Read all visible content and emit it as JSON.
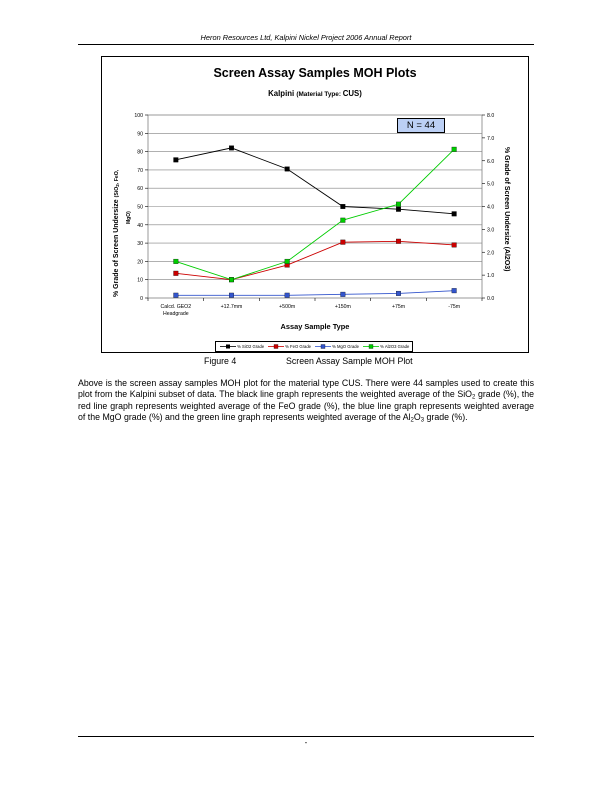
{
  "header": {
    "text": "Heron Resources Ltd, Kalpini Nickel Project 2006 Annual Report"
  },
  "chart": {
    "title": "Screen Assay Samples MOH Plots",
    "subtitle_main": "Kalpini ",
    "subtitle_small": "(Material Type: ",
    "subtitle_end": "CUS)",
    "n_label": "N = 44",
    "ylabel_left_a": "% Grade of Screen Undersize ",
    "ylabel_left_b": "(SiO",
    "ylabel_left_sub": "2",
    "ylabel_left_c": ", FeO,",
    "ylabel_left2_a": "Mg",
    "ylabel_left2_b": "O)",
    "ylabel_right": "% Grade of Screen Undersize (Al2O3)",
    "xlabel": "Assay Sample Type",
    "legend": [
      "% SiO2 Grade",
      "% FeO Grade",
      "% MgO Grade",
      "% Al2O3 Grade"
    ]
  },
  "chart_data": {
    "type": "line",
    "categories": [
      [
        "Calcd. GEO2",
        "Headgrade"
      ],
      [
        "+12.7mm"
      ],
      [
        "+500m"
      ],
      [
        "+150m"
      ],
      [
        "+75m"
      ],
      [
        "-75m"
      ]
    ],
    "y_left": {
      "ylim": [
        0,
        100
      ],
      "ticks": [
        "0",
        "10",
        "20",
        "30",
        "40",
        "50",
        "60",
        "70",
        "80",
        "90",
        "100"
      ]
    },
    "y_right": {
      "ylim": [
        0,
        8
      ],
      "ticks": [
        "0.0",
        "1.0",
        "2.0",
        "3.0",
        "4.0",
        "5.0",
        "6.0",
        "7.0",
        "8.0"
      ]
    },
    "grid": true,
    "legend_position": "bottom",
    "series": [
      {
        "name": "% SiO2 Grade",
        "axis": "left",
        "color": "#000000",
        "values": [
          75.5,
          82,
          70.5,
          50,
          48.5,
          46
        ]
      },
      {
        "name": "% FeO Grade",
        "axis": "left",
        "color": "#cc0000",
        "values": [
          13.5,
          10,
          18,
          30.5,
          31,
          29
        ]
      },
      {
        "name": "% MgO Grade",
        "axis": "left",
        "color": "#3355cc",
        "values": [
          1.5,
          1.5,
          1.5,
          2,
          2.5,
          4
        ]
      },
      {
        "name": "% Al2O3 Grade",
        "axis": "right",
        "color": "#00cc00",
        "values": [
          1.6,
          0.8,
          1.6,
          3.4,
          4.1,
          6.5
        ]
      }
    ]
  },
  "caption": {
    "figure": "Figure 4",
    "text": "Screen Assay Sample MOH Plot"
  },
  "body": {
    "p1": "Above is the screen assay samples MOH plot for the material type CUS.  There were 44 samples used to create this plot from the Kalpini subset of data.  The black line graph represents the weighted average of the SiO",
    "p1_sub1": "2",
    "p2": " grade (%), the red line graph represents weighted average of the FeO grade (%), the blue line graph represents weighted average of the MgO grade (%) and the green line graph represents weighted average of the Al",
    "p2_sub1": "2",
    "p3": "O",
    "p3_sub1": "3",
    "p4": " grade (%)."
  },
  "footer": {
    "page": "-"
  }
}
